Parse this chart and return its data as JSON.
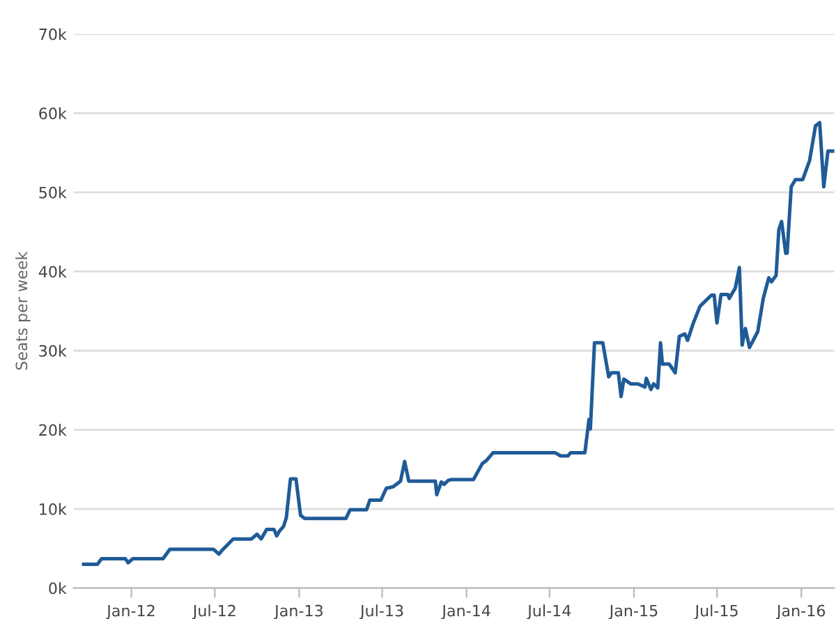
{
  "chart_data": {
    "type": "line",
    "ylabel": "Seats per week",
    "x": [
      "2011-09-19",
      "2011-10-19",
      "2011-10-28",
      "2011-12-19",
      "2011-12-25",
      "2012-01-04",
      "2012-03-10",
      "2012-03-25",
      "2012-06-28",
      "2012-07-10",
      "2012-07-19",
      "2012-08-10",
      "2012-09-19",
      "2012-10-01",
      "2012-10-10",
      "2012-10-22",
      "2012-11-07",
      "2012-11-13",
      "2012-11-19",
      "2012-11-28",
      "2012-12-04",
      "2012-12-13",
      "2012-12-25",
      "2013-01-04",
      "2013-01-13",
      "2013-04-13",
      "2013-04-22",
      "2013-05-28",
      "2013-06-04",
      "2013-06-28",
      "2013-07-10",
      "2013-07-25",
      "2013-08-10",
      "2013-08-19",
      "2013-08-28",
      "2013-10-25",
      "2013-10-28",
      "2013-11-07",
      "2013-11-13",
      "2013-11-22",
      "2013-11-28",
      "2014-01-16",
      "2014-02-04",
      "2014-02-13",
      "2014-02-28",
      "2014-07-13",
      "2014-07-25",
      "2014-08-10",
      "2014-08-16",
      "2014-09-16",
      "2014-09-25",
      "2014-09-28",
      "2014-10-07",
      "2014-10-25",
      "2014-11-07",
      "2014-11-13",
      "2014-11-28",
      "2014-12-04",
      "2014-12-10",
      "2014-12-25",
      "2015-01-10",
      "2015-01-25",
      "2015-01-28",
      "2015-02-07",
      "2015-02-13",
      "2015-02-22",
      "2015-02-28",
      "2015-03-04",
      "2015-03-19",
      "2015-04-01",
      "2015-04-10",
      "2015-04-22",
      "2015-04-28",
      "2015-05-10",
      "2015-05-25",
      "2015-06-19",
      "2015-06-25",
      "2015-07-01",
      "2015-07-10",
      "2015-07-25",
      "2015-07-28",
      "2015-08-10",
      "2015-08-19",
      "2015-08-25",
      "2015-09-01",
      "2015-09-10",
      "2015-09-28",
      "2015-10-10",
      "2015-10-22",
      "2015-10-28",
      "2015-11-07",
      "2015-11-13",
      "2015-11-19",
      "2015-11-28",
      "2015-12-01",
      "2015-12-10",
      "2015-12-19",
      "2016-01-04",
      "2016-01-19",
      "2016-02-01",
      "2016-02-10",
      "2016-02-19",
      "2016-02-28",
      "2016-03-13"
    ],
    "series": [
      {
        "color": "#1f5b97",
        "values": [
          3000,
          3000,
          3700,
          3700,
          3200,
          3700,
          3700,
          4900,
          4900,
          4300,
          4900,
          6200,
          6200,
          6800,
          6200,
          7400,
          7400,
          6600,
          7200,
          7800,
          8900,
          13800,
          13800,
          9200,
          8800,
          8800,
          9900,
          9900,
          11100,
          11100,
          12600,
          12800,
          13500,
          16000,
          13500,
          13500,
          11800,
          13400,
          13100,
          13600,
          13700,
          13700,
          15700,
          16100,
          17100,
          17100,
          16700,
          16700,
          17100,
          17100,
          21300,
          20100,
          31000,
          31000,
          26700,
          27200,
          27200,
          24200,
          26400,
          25800,
          25800,
          25400,
          26500,
          25100,
          25800,
          25300,
          31000,
          28300,
          28300,
          27200,
          31800,
          32100,
          31300,
          33400,
          35600,
          37000,
          37000,
          33500,
          37100,
          37100,
          36600,
          37900,
          40500,
          30700,
          32800,
          30400,
          32400,
          36600,
          39200,
          38700,
          39500,
          45300,
          46300,
          42300,
          42300,
          50700,
          51600,
          51600,
          54000,
          58400,
          58800,
          50700,
          55200,
          55200
        ]
      }
    ],
    "xlim": [
      "2011-08-28",
      "2016-03-13"
    ],
    "xticks": [
      {
        "value": "2012-01-01",
        "label": "Jan-12"
      },
      {
        "value": "2012-07-01",
        "label": "Jul-12"
      },
      {
        "value": "2013-01-01",
        "label": "Jan-13"
      },
      {
        "value": "2013-07-01",
        "label": "Jul-13"
      },
      {
        "value": "2014-01-01",
        "label": "Jan-14"
      },
      {
        "value": "2014-07-01",
        "label": "Jul-14"
      },
      {
        "value": "2015-01-01",
        "label": "Jan-15"
      },
      {
        "value": "2015-07-01",
        "label": "Jul-15"
      },
      {
        "value": "2016-01-01",
        "label": "Jan-16"
      }
    ],
    "ylim": [
      0,
      70000
    ],
    "yticks": [
      {
        "value": 0,
        "label": "0k"
      },
      {
        "value": 10000,
        "label": "10k"
      },
      {
        "value": 20000,
        "label": "20k"
      },
      {
        "value": 30000,
        "label": "30k"
      },
      {
        "value": 40000,
        "label": "40k"
      },
      {
        "value": 50000,
        "label": "50k"
      },
      {
        "value": 60000,
        "label": "60k"
      },
      {
        "value": 70000,
        "label": "70k"
      }
    ],
    "grid": "y",
    "legend": false,
    "marker": "none",
    "line_style": "solid"
  }
}
